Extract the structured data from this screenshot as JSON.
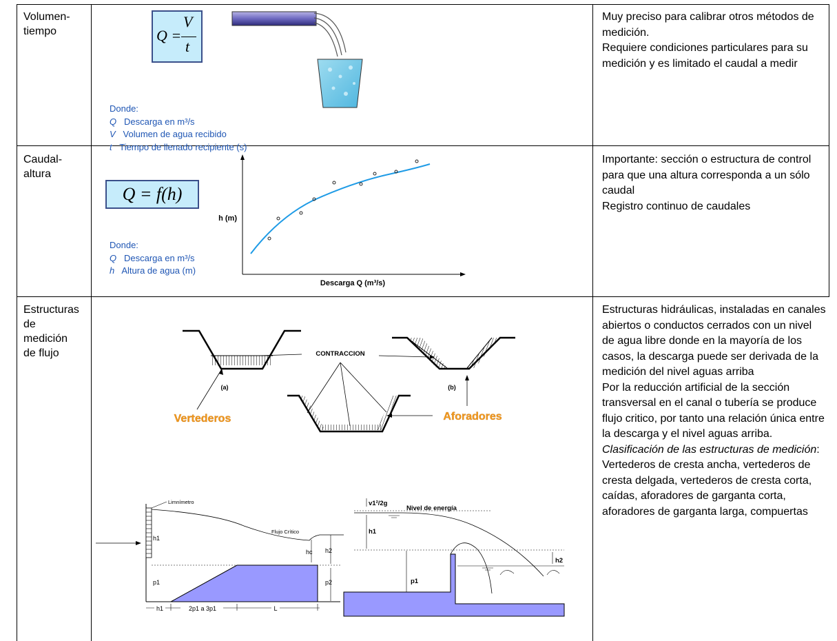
{
  "rows": [
    {
      "method": "Volumen-\ntiempo",
      "formula": {
        "lhs": "Q =",
        "num": "V",
        "den": "t"
      },
      "legend_title": "Donde:",
      "legend": [
        {
          "sym": "Q",
          "text": "Descarga en m³/s"
        },
        {
          "sym": "V",
          "text": "Volumen de agua recibido"
        },
        {
          "sym": "t",
          "text": "Tiempo de llenado recipiente (s)"
        }
      ],
      "description": "Muy preciso para calibrar otros métodos de medición.\nRequiere condiciones particulares para su medición y es limitado el caudal a medir"
    },
    {
      "method": "Caudal-\naltura",
      "formula": "Q = f(h)",
      "legend_title": "Donde:",
      "legend": [
        {
          "sym": "Q",
          "text": "Descarga en m³/s"
        },
        {
          "sym": "h",
          "text": "Altura de agua (m)"
        }
      ],
      "graph": {
        "ylabel": "h (m)",
        "xlabel": "Descarga Q (m³/s)"
      },
      "description": "Importante: sección o estructura de control para que una altura corresponda a un sólo caudal\nRegistro continuo de caudales"
    },
    {
      "method": "Estructuras\nde\nmedición\nde flujo",
      "diagram_top": {
        "contraction": "CONTRACCION",
        "label_a": "(a)",
        "label_b": "(b)",
        "weirs": "Vertederos",
        "flumes": "Aforadores"
      },
      "diagram_left": {
        "limnimeter": "Limnímetro",
        "critical": "Flujo Crítico",
        "h1": "h1",
        "hc": "hc",
        "h2": "h2",
        "p1": "p1",
        "p2": "p2",
        "d1": "h1",
        "d2": "2p1 a 3p1",
        "d3": "L"
      },
      "diagram_right": {
        "velocity": "v1²/2g",
        "energy": "Nivel de energía",
        "h1": "h1",
        "p1": "p1",
        "h2": "h2"
      },
      "description_1": "Estructuras hidráulicas, instaladas en canales abiertos o conductos cerrados con un nivel de agua libre donde en la mayoría de los casos, la descarga puede ser derivada de la medición del nivel aguas arriba\nPor la reducción artificial de la sección transversal en el canal o tubería se produce flujo critico, por tanto una relación única entre la descarga y el nivel aguas arriba.",
      "description_italic": "Clasificación de las estructuras de medición",
      "description_2": ": Vertederos de cresta ancha, vertederos de cresta delgada, vertederos de cresta corta, caídas, aforadores de garganta corta, aforadores de garganta larga, compuertas"
    }
  ],
  "colors": {
    "formula_bg": "#c6ecfb",
    "accent_blue": "#1f56b4",
    "orange": "#f39a1e",
    "structure": "#9999ff",
    "curve": "#1e9be6"
  }
}
